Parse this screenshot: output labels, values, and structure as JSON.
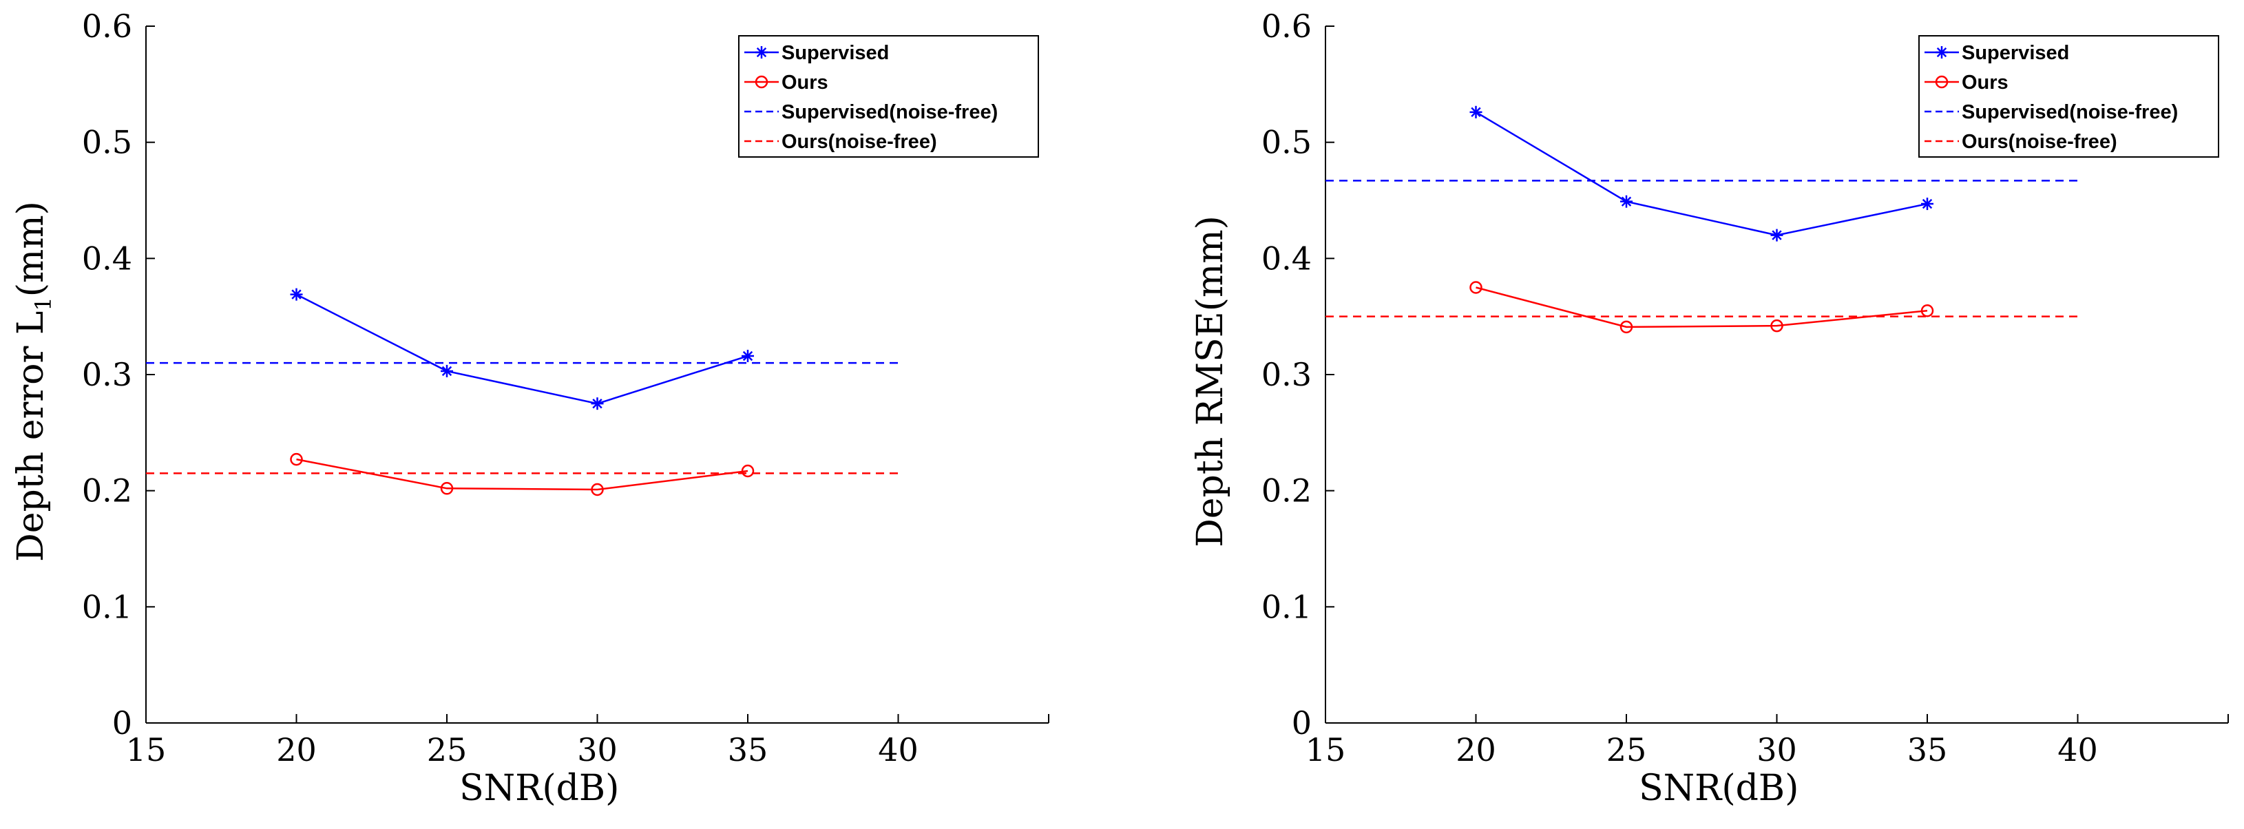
{
  "chart_data": [
    {
      "type": "line",
      "title": "",
      "xlabel": "SNR(dB)",
      "ylabel_main": "Depth error L",
      "ylabel_sub": "1",
      "ylabel_suffix": "(mm)",
      "xlim": [
        15,
        45
      ],
      "ylim": [
        0,
        0.6
      ],
      "xticks": [
        15,
        20,
        25,
        30,
        35,
        40
      ],
      "yticks": [
        0,
        0.1,
        0.2,
        0.3,
        0.4,
        0.5,
        0.6
      ],
      "xtick_labels": [
        "15",
        "20",
        "25",
        "30",
        "35",
        "40"
      ],
      "ytick_labels": [
        "0",
        "0.1",
        "0.2",
        "0.3",
        "0.4",
        "0.5",
        "0.6"
      ],
      "grid": false,
      "legend_position": "top-right",
      "x": [
        20,
        25,
        30,
        35
      ],
      "series": [
        {
          "name": "Supervised",
          "values": [
            0.369,
            0.303,
            0.275,
            0.316
          ],
          "color": "#0000ff",
          "marker": "star",
          "style": "solid"
        },
        {
          "name": "Ours",
          "values": [
            0.227,
            0.202,
            0.201,
            0.217
          ],
          "color": "#ff0000",
          "marker": "circle",
          "style": "solid"
        },
        {
          "name": "Supervised(noise-free)",
          "constant": 0.31,
          "x_range": [
            15,
            40
          ],
          "color": "#0000ff",
          "marker": "none",
          "style": "dashed"
        },
        {
          "name": "Ours(noise-free)",
          "constant": 0.215,
          "x_range": [
            15,
            40
          ],
          "color": "#ff0000",
          "marker": "none",
          "style": "dashed"
        }
      ]
    },
    {
      "type": "line",
      "title": "",
      "xlabel": "SNR(dB)",
      "ylabel_main": "Depth RMSE(mm)",
      "ylabel_sub": "",
      "ylabel_suffix": "",
      "xlim": [
        15,
        45
      ],
      "ylim": [
        0,
        0.6
      ],
      "xticks": [
        15,
        20,
        25,
        30,
        35,
        40
      ],
      "yticks": [
        0,
        0.1,
        0.2,
        0.3,
        0.4,
        0.5,
        0.6
      ],
      "xtick_labels": [
        "15",
        "20",
        "25",
        "30",
        "35",
        "40"
      ],
      "ytick_labels": [
        "0",
        "0.1",
        "0.2",
        "0.3",
        "0.4",
        "0.5",
        "0.6"
      ],
      "grid": false,
      "legend_position": "top-right",
      "x": [
        20,
        25,
        30,
        35
      ],
      "series": [
        {
          "name": "Supervised",
          "values": [
            0.526,
            0.449,
            0.42,
            0.447
          ],
          "color": "#0000ff",
          "marker": "star",
          "style": "solid"
        },
        {
          "name": "Ours",
          "values": [
            0.375,
            0.341,
            0.342,
            0.355
          ],
          "color": "#ff0000",
          "marker": "circle",
          "style": "solid"
        },
        {
          "name": "Supervised(noise-free)",
          "constant": 0.467,
          "x_range": [
            15,
            40
          ],
          "color": "#0000ff",
          "marker": "none",
          "style": "dashed"
        },
        {
          "name": "Ours(noise-free)",
          "constant": 0.35,
          "x_range": [
            15,
            40
          ],
          "color": "#ff0000",
          "marker": "none",
          "style": "dashed"
        }
      ]
    }
  ]
}
